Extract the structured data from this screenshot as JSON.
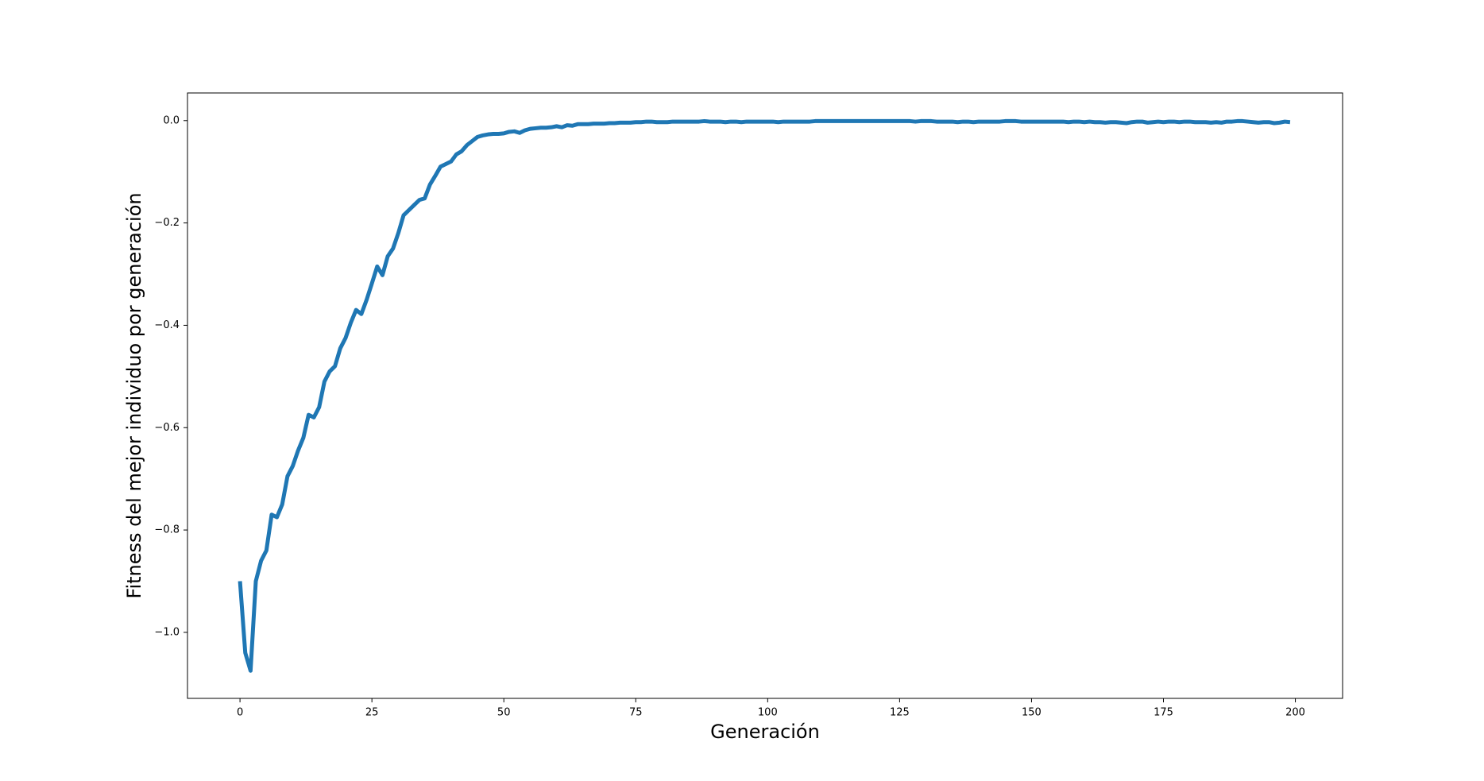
{
  "chart_data": {
    "type": "line",
    "xlabel": "Generación",
    "ylabel": "Fitness del mejor individuo por generación",
    "color": "#1f77b4",
    "x": [
      0,
      1,
      2,
      3,
      4,
      5,
      6,
      7,
      8,
      9,
      10,
      11,
      12,
      13,
      14,
      15,
      16,
      17,
      18,
      19,
      20,
      21,
      22,
      23,
      24,
      25,
      26,
      27,
      28,
      29,
      30,
      31,
      32,
      33,
      34,
      35,
      36,
      37,
      38,
      39,
      40,
      41,
      42,
      43,
      44,
      45,
      46,
      47,
      48,
      49,
      50,
      51,
      52,
      53,
      54,
      55,
      56,
      57,
      58,
      59,
      60,
      61,
      62,
      63,
      64,
      65,
      66,
      67,
      68,
      69,
      70,
      71,
      72,
      73,
      74,
      75,
      76,
      77,
      78,
      79,
      80,
      81,
      82,
      83,
      84,
      85,
      86,
      87,
      88,
      89,
      90,
      91,
      92,
      93,
      94,
      95,
      96,
      97,
      98,
      99,
      100,
      101,
      102,
      103,
      104,
      105,
      106,
      107,
      108,
      109,
      110,
      111,
      112,
      113,
      114,
      115,
      116,
      117,
      118,
      119,
      120,
      121,
      122,
      123,
      124,
      125,
      126,
      127,
      128,
      129,
      130,
      131,
      132,
      133,
      134,
      135,
      136,
      137,
      138,
      139,
      140,
      141,
      142,
      143,
      144,
      145,
      146,
      147,
      148,
      149,
      150,
      151,
      152,
      153,
      154,
      155,
      156,
      157,
      158,
      159,
      160,
      161,
      162,
      163,
      164,
      165,
      166,
      167,
      168,
      169,
      170,
      171,
      172,
      173,
      174,
      175,
      176,
      177,
      178,
      179,
      180,
      181,
      182,
      183,
      184,
      185,
      186,
      187,
      188,
      189,
      190,
      191,
      192,
      193,
      194,
      195,
      196,
      197,
      198,
      199
    ],
    "values": [
      -0.9,
      -1.04,
      -1.075,
      -0.9,
      -0.86,
      -0.84,
      -0.77,
      -0.775,
      -0.75,
      -0.695,
      -0.675,
      -0.645,
      -0.62,
      -0.575,
      -0.58,
      -0.56,
      -0.51,
      -0.49,
      -0.48,
      -0.445,
      -0.425,
      -0.395,
      -0.37,
      -0.378,
      -0.35,
      -0.318,
      -0.285,
      -0.302,
      -0.265,
      -0.25,
      -0.22,
      -0.185,
      -0.175,
      -0.165,
      -0.155,
      -0.152,
      -0.125,
      -0.108,
      -0.09,
      -0.085,
      -0.08,
      -0.066,
      -0.06,
      -0.048,
      -0.04,
      -0.032,
      -0.029,
      -0.027,
      -0.026,
      -0.026,
      -0.025,
      -0.022,
      -0.021,
      -0.024,
      -0.019,
      -0.016,
      -0.015,
      -0.014,
      -0.014,
      -0.013,
      -0.011,
      -0.013,
      -0.009,
      -0.01,
      -0.007,
      -0.007,
      -0.007,
      -0.006,
      -0.006,
      -0.006,
      -0.005,
      -0.005,
      -0.004,
      -0.004,
      -0.004,
      -0.003,
      -0.003,
      -0.002,
      -0.002,
      -0.003,
      -0.003,
      -0.003,
      -0.002,
      -0.002,
      -0.002,
      -0.002,
      -0.002,
      -0.002,
      -0.001,
      -0.002,
      -0.002,
      -0.002,
      -0.003,
      -0.002,
      -0.002,
      -0.003,
      -0.002,
      -0.002,
      -0.002,
      -0.002,
      -0.002,
      -0.002,
      -0.003,
      -0.002,
      -0.002,
      -0.002,
      -0.002,
      -0.002,
      -0.002,
      -0.001,
      -0.001,
      -0.001,
      -0.001,
      -0.001,
      -0.001,
      -0.001,
      -0.001,
      -0.001,
      -0.001,
      -0.001,
      -0.001,
      -0.001,
      -0.001,
      -0.001,
      -0.001,
      -0.001,
      -0.001,
      -0.001,
      -0.002,
      -0.001,
      -0.001,
      -0.001,
      -0.002,
      -0.002,
      -0.002,
      -0.002,
      -0.003,
      -0.002,
      -0.002,
      -0.003,
      -0.002,
      -0.002,
      -0.002,
      -0.002,
      -0.002,
      -0.001,
      -0.001,
      -0.001,
      -0.002,
      -0.002,
      -0.002,
      -0.002,
      -0.002,
      -0.002,
      -0.002,
      -0.002,
      -0.002,
      -0.003,
      -0.002,
      -0.002,
      -0.003,
      -0.002,
      -0.003,
      -0.003,
      -0.004,
      -0.003,
      -0.003,
      -0.004,
      -0.005,
      -0.003,
      -0.002,
      -0.002,
      -0.004,
      -0.003,
      -0.002,
      -0.003,
      -0.002,
      -0.002,
      -0.003,
      -0.002,
      -0.002,
      -0.003,
      -0.003,
      -0.003,
      -0.004,
      -0.003,
      -0.004,
      -0.002,
      -0.002,
      -0.001,
      -0.001,
      -0.002,
      -0.003,
      -0.004,
      -0.003,
      -0.003,
      -0.005,
      -0.004,
      -0.002,
      -0.003
    ],
    "xlim": [
      -9.95,
      208.95
    ],
    "xticks": [
      0,
      25,
      50,
      75,
      100,
      125,
      150,
      175,
      200
    ],
    "ylim": [
      -1.129,
      0.054
    ],
    "yticks": [
      {
        "value": -1.0,
        "label": "−1.0"
      },
      {
        "value": -0.8,
        "label": "−0.8"
      },
      {
        "value": -0.6,
        "label": "−0.6"
      },
      {
        "value": -0.4,
        "label": "−0.4"
      },
      {
        "value": -0.2,
        "label": "−0.2"
      },
      {
        "value": 0.0,
        "label": "0.0"
      }
    ],
    "grid": false
  }
}
